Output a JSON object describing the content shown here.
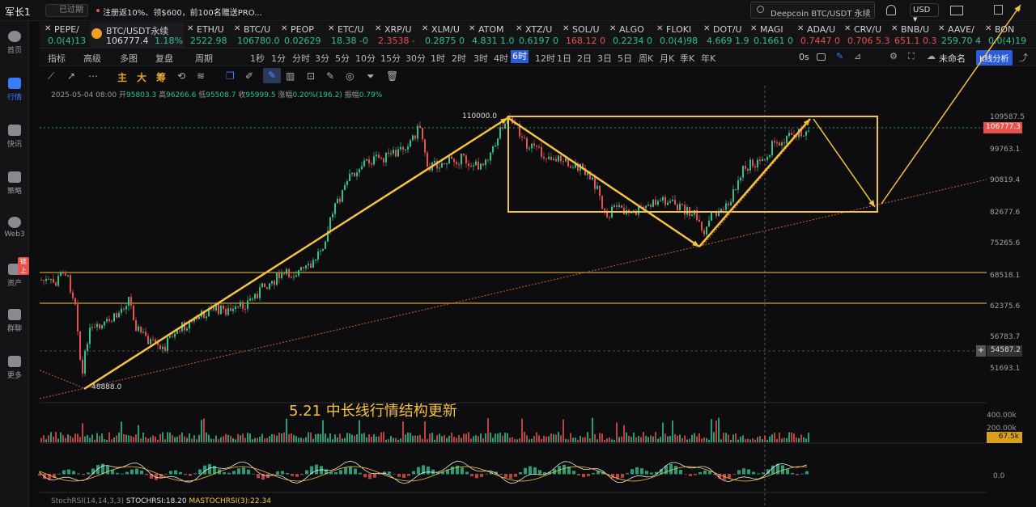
{
  "topbar": {
    "user": "军长1",
    "status": "已过期",
    "promo": "注册返10%、领$600，前100名赠送PRO...",
    "search": "Deepcoin BTC/USDT 永续",
    "currency": "USD"
  },
  "sidebar": [
    {
      "label": "首页"
    },
    {
      "label": "行情"
    },
    {
      "label": "快讯"
    },
    {
      "label": "策略"
    },
    {
      "label": "Web3"
    },
    {
      "label": "资产",
      "badge": "链上"
    },
    {
      "label": "群聊"
    },
    {
      "label": "更多"
    }
  ],
  "tickers": [
    {
      "name": "PEPE/",
      "price": "0.0(4)13",
      "dir": "up"
    },
    {
      "name": "BTC/USDT永续",
      "price": "106777.4",
      "change": "1.18%",
      "dir": "up",
      "active": true
    },
    {
      "name": "ETH/U",
      "price": "2522.98",
      "dir": "up"
    },
    {
      "name": "BTC/U",
      "price": "106780.0",
      "dir": "up"
    },
    {
      "name": "PEOP",
      "price": "0.02629",
      "dir": "up"
    },
    {
      "name": "ETC/U",
      "price": "18.38 -0",
      "dir": "up"
    },
    {
      "name": "XRP/U",
      "price": "2.3538 -",
      "dir": "dn"
    },
    {
      "name": "XLM/U",
      "price": "0.2875 0",
      "dir": "up"
    },
    {
      "name": "ATOM",
      "price": "4.831 1.0",
      "dir": "up"
    },
    {
      "name": "XTZ/U",
      "price": "0.6197 0",
      "dir": "up"
    },
    {
      "name": "SOL/U",
      "price": "168.12 0",
      "dir": "dn"
    },
    {
      "name": "ALGO",
      "price": "0.2234 0",
      "dir": "up"
    },
    {
      "name": "FLOKI",
      "price": "0.0(4)98",
      "dir": "up"
    },
    {
      "name": "DOT/U",
      "price": "4.669 1.9",
      "dir": "up"
    },
    {
      "name": "MAGI",
      "price": "0.1661 0",
      "dir": "up"
    },
    {
      "name": "ADA/U",
      "price": "0.7447 0",
      "dir": "dn"
    },
    {
      "name": "CRV/U",
      "price": "0.706 5.3",
      "dir": "dn"
    },
    {
      "name": "BNB/U",
      "price": "651.1 0.3",
      "dir": "dn"
    },
    {
      "name": "AAVE/",
      "price": "259.70 4",
      "dir": "up"
    },
    {
      "name": "BON",
      "price": "0.0(4)19",
      "dir": "up"
    }
  ],
  "timeframes": [
    "指标",
    "高级",
    "多图",
    "复盘",
    "周期",
    "1秒",
    "1分",
    "分时",
    "3分",
    "5分",
    "10分",
    "15分",
    "30分",
    "1时",
    "2时",
    "3时",
    "4时",
    "6时",
    "12时",
    "1日",
    "2日",
    "3日",
    "5日",
    "周K",
    "月K",
    "季K",
    "年K"
  ],
  "active_tf": "6时",
  "right_tools": {
    "time": "0s",
    "layout": "未命名",
    "analyze": "K线分析"
  },
  "draw_tools": [
    "主",
    "大",
    "筹"
  ],
  "ohlc": {
    "date": "2025-05-04 08:00",
    "open_l": "开",
    "open": "95803.3",
    "high_l": "高",
    "high": "96266.6",
    "low_l": "低",
    "low": "95508.7",
    "close_l": "收",
    "close": "95999.5",
    "chg_l": "涨幅",
    "chg": "0.20%(196.2)",
    "amp_l": "振幅",
    "amp": "0.79%"
  },
  "price_labels": [
    "109587.5",
    "99763.1",
    "90819.4",
    "82677.6",
    "75265.6",
    "68518.1",
    "62375.6",
    "56783.7",
    "51693.1"
  ],
  "current_price": "106777.3",
  "cursor_price": "54587.2",
  "annotations": {
    "high": "110000.0",
    "low": "48888.0",
    "title": "5.21 中长线行情结构更新"
  },
  "volume": {
    "labels": [
      "400.00k",
      "200.00k"
    ],
    "current": "67.5k"
  },
  "oscillator": {
    "zero": "0.0",
    "label": "StochRSI(14,14,3,3)",
    "stoch": "STOCHRSI:18.20",
    "ma": "MASTOCHRSI(3):22.34"
  },
  "colors": {
    "up": "#2ec28e",
    "down": "#e8504a",
    "draw": "#f5c242",
    "accent": "#3a7bff"
  }
}
